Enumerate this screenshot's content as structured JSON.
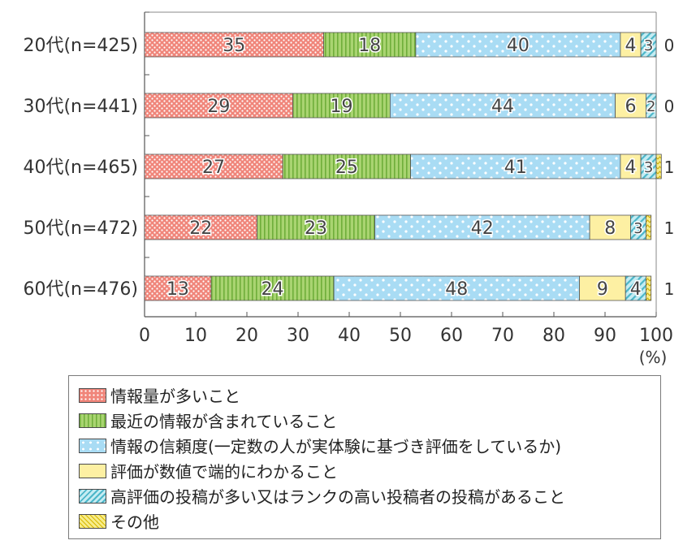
{
  "chart_data": {
    "type": "bar",
    "orientation": "horizontal",
    "stacked": true,
    "categories": [
      "20代(n=425)",
      "30代(n=441)",
      "40代(n=465)",
      "50代(n=472)",
      "60代(n=476)"
    ],
    "series": [
      {
        "name": "情報量が多いこと",
        "values": [
          35,
          29,
          27,
          22,
          13
        ],
        "color": "#f0857a",
        "pattern": "dots-on-red"
      },
      {
        "name": "最近の情報が含まれていること",
        "values": [
          18,
          19,
          25,
          23,
          24
        ],
        "color": "#a9d471",
        "pattern": "vertical-stripes"
      },
      {
        "name": "情報の信頼度(一定数の人が実体験に基づき評価をしているか)",
        "values": [
          40,
          44,
          41,
          42,
          48
        ],
        "color": "#a9dcf4",
        "pattern": "white-dots"
      },
      {
        "name": "評価が数値で端的にわかること",
        "values": [
          4,
          6,
          4,
          8,
          9
        ],
        "color": "#fdf0a3",
        "pattern": "solid"
      },
      {
        "name": "高評価の投稿が多い又はランクの高い投稿者の投稿があること",
        "values": [
          3,
          2,
          3,
          3,
          4
        ],
        "color": "#9fd9e3",
        "pattern": "diagonal-stripes"
      },
      {
        "name": "その他",
        "values": [
          0,
          0,
          1,
          1,
          1
        ],
        "color": "#f2e05a",
        "pattern": "zigzag"
      }
    ],
    "xlim": [
      0,
      100
    ],
    "xticks": [
      "0",
      "10",
      "20",
      "30",
      "40",
      "50",
      "60",
      "70",
      "80",
      "90",
      "100"
    ],
    "unit_label": "(%)",
    "legend_position": "bottom",
    "grid": false
  }
}
